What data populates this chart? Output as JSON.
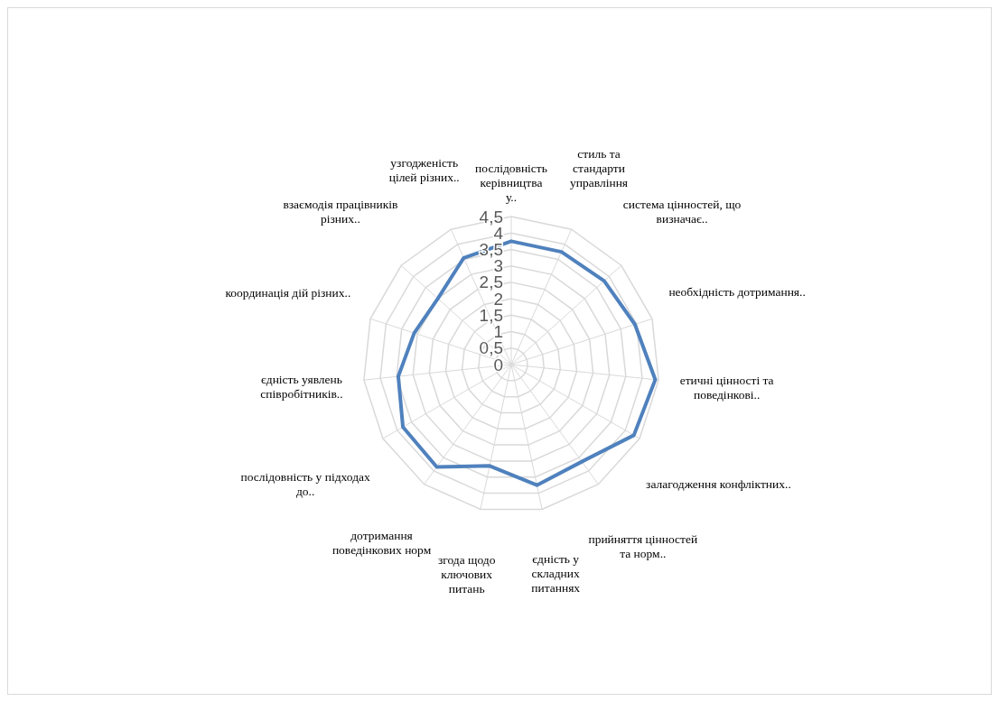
{
  "chart_data": {
    "type": "radar",
    "categories": [
      "послідовність керівництва у..",
      "стиль та стандарти управління",
      "система цінностей, що визначає..",
      "необхідність дотримання..",
      "етичні цінності та поведінкові..",
      "залагодження конфліктних..",
      "прийняття цінностей та норм..",
      "єдність у складних питаннях",
      "згода щодо ключових питань",
      "дотримання поведінкових норм",
      "послідовність у підходах до..",
      "єдність уявлень співробітників..",
      "координація дій різних..",
      "взаємодія працівників різних..",
      "узгодженість цілей різних.."
    ],
    "series": [
      {
        "color": "#4f81bd",
        "values": [
          3.75,
          3.75,
          3.8,
          3.95,
          4.4,
          4.3,
          3.65,
          3.75,
          3.15,
          3.85,
          3.8,
          3.45,
          3.1,
          3.0,
          3.55
        ]
      }
    ],
    "ylim": [
      0,
      4.5
    ],
    "yticks": [
      {
        "value": 0,
        "label": "0"
      },
      {
        "value": 0.5,
        "label": "0,5"
      },
      {
        "value": 1,
        "label": "1"
      },
      {
        "value": 1.5,
        "label": "1,5"
      },
      {
        "value": 2,
        "label": "2"
      },
      {
        "value": 2.5,
        "label": "2,5"
      },
      {
        "value": 3,
        "label": "3"
      },
      {
        "value": 3.5,
        "label": "3,5"
      },
      {
        "value": 4,
        "label": "4"
      },
      {
        "value": 4.5,
        "label": "4,5"
      }
    ],
    "grid": true
  }
}
